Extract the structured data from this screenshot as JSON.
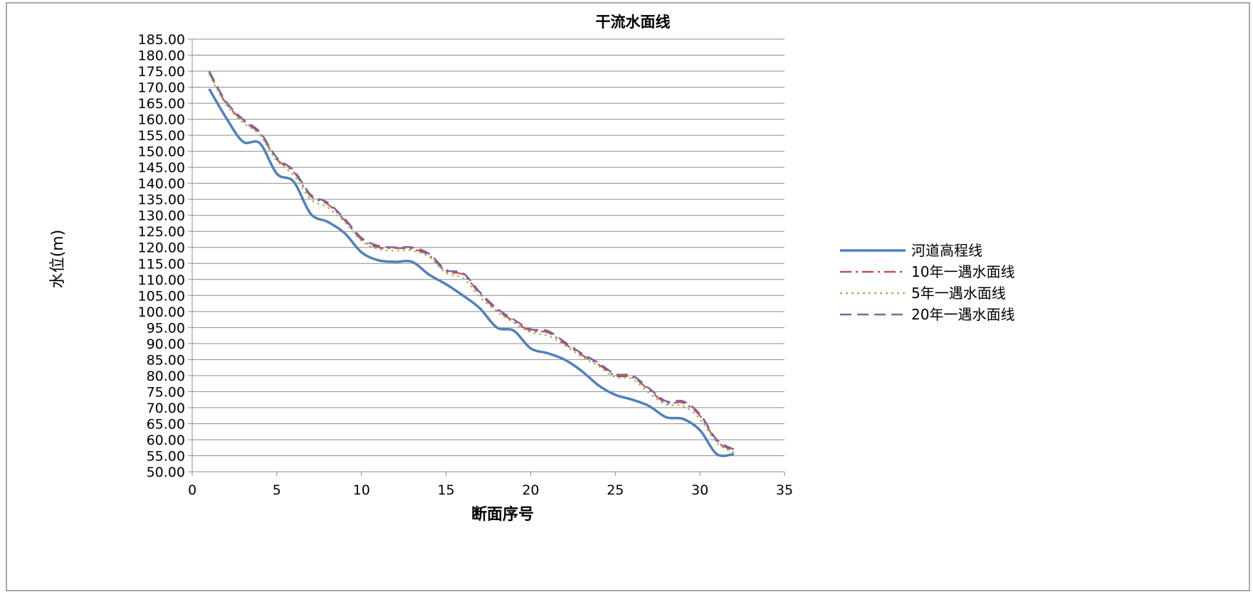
{
  "chart_data": {
    "type": "line",
    "title": "干流水面线",
    "xlabel": "断面序号",
    "ylabel": "水位(m)",
    "xlim": [
      0,
      35
    ],
    "ylim": [
      50,
      185
    ],
    "x_ticks": [
      0,
      5,
      10,
      15,
      20,
      25,
      30,
      35
    ],
    "y_ticks": [
      50,
      55,
      60,
      65,
      70,
      75,
      80,
      85,
      90,
      95,
      100,
      105,
      110,
      115,
      120,
      125,
      130,
      135,
      140,
      145,
      150,
      155,
      160,
      165,
      170,
      175,
      180,
      185
    ],
    "y_tick_decimals": 2,
    "grid": "horizontal",
    "legend_position": "right",
    "x": [
      1,
      2,
      3,
      4,
      5,
      6,
      7,
      8,
      9,
      10,
      11,
      12,
      13,
      14,
      15,
      16,
      17,
      18,
      19,
      20,
      21,
      22,
      23,
      24,
      25,
      26,
      27,
      28,
      29,
      30,
      31,
      32
    ],
    "series": [
      {
        "name": "河道高程线",
        "color": "#4f81bd",
        "dash": "solid",
        "values": [
          169.5,
          160.5,
          153.0,
          152.5,
          143.0,
          140.5,
          130.5,
          128.0,
          124.5,
          118.5,
          116.0,
          115.5,
          115.5,
          111.5,
          108.5,
          105.0,
          101.0,
          95.0,
          94.0,
          88.5,
          87.0,
          85.0,
          81.5,
          77.0,
          74.0,
          72.5,
          70.5,
          67.0,
          66.5,
          63.0,
          55.5,
          55.5
        ]
      },
      {
        "name": "10年一遇水面线",
        "color": "#c0504d",
        "dash": "dashdot",
        "values": [
          174.5,
          165.0,
          159.5,
          155.5,
          147.5,
          143.5,
          136.0,
          133.5,
          128.5,
          122.5,
          120.0,
          119.8,
          119.5,
          117.5,
          112.5,
          111.5,
          105.5,
          100.5,
          97.0,
          94.0,
          93.5,
          90.0,
          86.5,
          83.5,
          80.0,
          79.5,
          75.5,
          71.5,
          71.5,
          67.5,
          59.5,
          56.5
        ]
      },
      {
        "name": "5年一遇水面线",
        "color": "#9bbb59",
        "dash": "dotted",
        "values": [
          174.0,
          164.5,
          159.0,
          155.0,
          147.0,
          142.5,
          135.0,
          132.5,
          128.0,
          122.0,
          119.5,
          119.0,
          119.0,
          117.0,
          112.0,
          110.5,
          104.5,
          100.0,
          96.5,
          93.5,
          92.5,
          89.5,
          86.0,
          83.0,
          79.5,
          79.0,
          74.5,
          71.0,
          70.5,
          66.5,
          59.0,
          56.0
        ]
      },
      {
        "name": "20年一遇水面线",
        "color": "#8064a2",
        "dash": "longdash",
        "values": [
          175.0,
          165.5,
          160.0,
          156.0,
          148.0,
          144.0,
          136.5,
          134.0,
          129.0,
          123.0,
          120.5,
          120.0,
          120.0,
          118.0,
          113.0,
          112.0,
          106.0,
          101.0,
          97.5,
          94.5,
          94.0,
          90.5,
          87.0,
          84.0,
          80.5,
          80.0,
          76.0,
          72.0,
          72.0,
          68.0,
          60.0,
          57.0
        ]
      }
    ]
  }
}
